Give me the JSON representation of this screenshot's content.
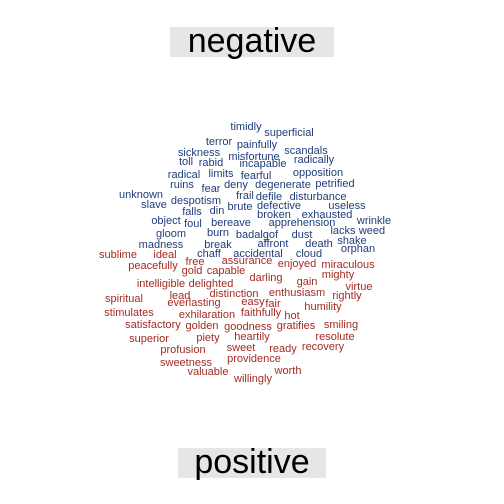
{
  "chart_data": {
    "type": "comparison_wordcloud",
    "groups": [
      {
        "name": "negative",
        "color": "#1f3d7a",
        "words": [
          "timidly",
          "superficial",
          "terror",
          "painfully",
          "sickness",
          "misfortune",
          "scandals",
          "toll",
          "rabid",
          "incapable",
          "radically",
          "radical",
          "limits",
          "fearful",
          "opposition",
          "ruins",
          "fear",
          "deny",
          "degenerate",
          "petrified",
          "unknown",
          "frail",
          "defile",
          "disturbance",
          "slave",
          "despotism",
          "brute",
          "defective",
          "useless",
          "falls",
          "din",
          "broken",
          "exhausted",
          "object",
          "foul",
          "bereave",
          "apprehension",
          "wrinkle",
          "gloom",
          "burn",
          "dust",
          "lacks",
          "weed",
          "badalgof",
          "shake",
          "madness",
          "break",
          "affront",
          "death",
          "orphan",
          "chaff",
          "accidental",
          "cloud"
        ]
      },
      {
        "name": "positive",
        "color": "#a32b24",
        "words": [
          "sublime",
          "ideal",
          "free",
          "assurance",
          "enjoyed",
          "miraculous",
          "peacefully",
          "gold",
          "capable",
          "mighty",
          "darling",
          "gain",
          "intelligible",
          "delighted",
          "virtue",
          "lead",
          "distinction",
          "enthusiasm",
          "spiritual",
          "everlasting",
          "easy",
          "fair",
          "rightly",
          "humility",
          "stimulates",
          "exhilaration",
          "faithfully",
          "hot",
          "satisfactory",
          "golden",
          "goodness",
          "gratifies",
          "smiling",
          "superior",
          "piety",
          "heartily",
          "resolute",
          "profusion",
          "sweet",
          "ready",
          "recovery",
          "sweetness",
          "providence",
          "valuable",
          "worth",
          "willingly"
        ]
      }
    ]
  }
}
